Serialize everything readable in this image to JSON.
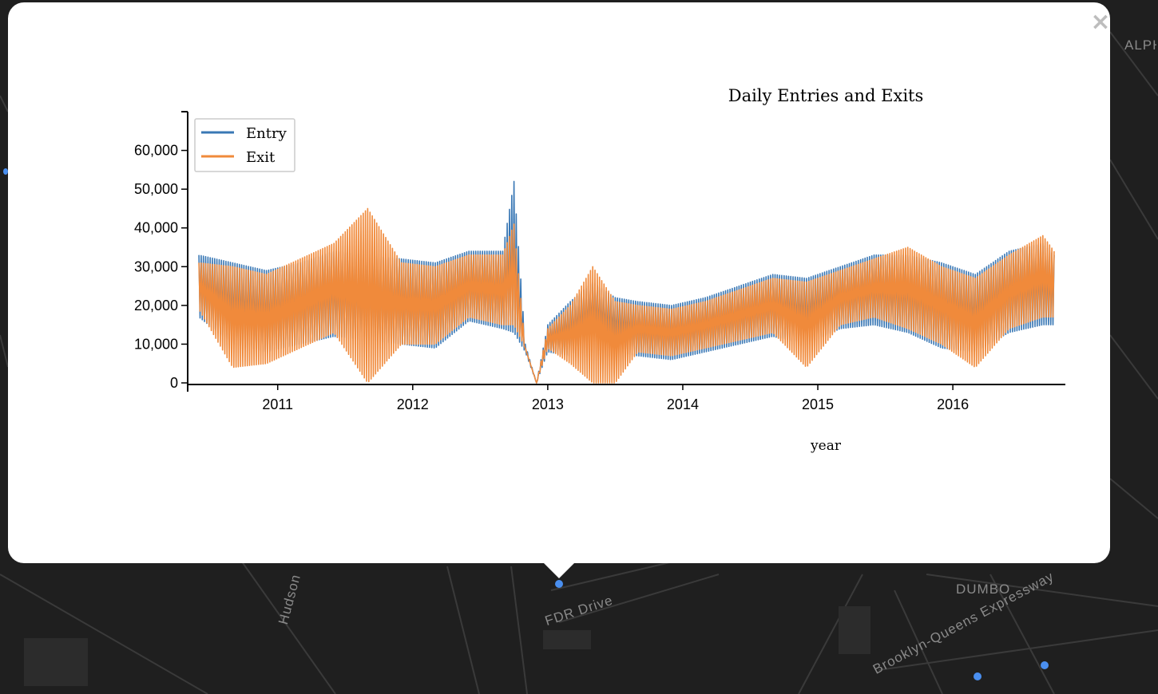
{
  "map": {
    "labels": [
      "DUMBO",
      "FDR Drive",
      "Brooklyn-Queens Expressway",
      "Hudson",
      "ALPH"
    ]
  },
  "popup": {
    "close_glyph": "×"
  },
  "colors": {
    "entry": "#3a78b5",
    "exit": "#f08a3b",
    "station_dot": "#4a8ff0"
  },
  "chart_data": {
    "type": "line",
    "title": "Daily Entries and Exits",
    "xlabel": "year",
    "ylabel": "",
    "grid": false,
    "legend_position": "top-left",
    "xlim": [
      "2010-05-01",
      "2016-11-01"
    ],
    "ylim": [
      0,
      70000
    ],
    "x_ticks": [
      "2011",
      "2012",
      "2013",
      "2014",
      "2015",
      "2016"
    ],
    "y_ticks": [
      "0",
      "10,000",
      "20,000",
      "30,000",
      "40,000",
      "50,000",
      "60,000"
    ],
    "series": [
      {
        "name": "Entry",
        "x": [
          "2010-06",
          "2010-09",
          "2010-12",
          "2011-03",
          "2011-06",
          "2011-09",
          "2011-12",
          "2012-03",
          "2012-06",
          "2012-09",
          "2012-10",
          "2012-11",
          "2012-12",
          "2013-01",
          "2013-03",
          "2013-05",
          "2013-07",
          "2013-09",
          "2013-12",
          "2014-03",
          "2014-06",
          "2014-09",
          "2014-12",
          "2015-03",
          "2015-06",
          "2015-09",
          "2015-12",
          "2016-03",
          "2016-06",
          "2016-09",
          "2016-10"
        ],
        "high": [
          33000,
          31000,
          29000,
          31000,
          34000,
          33000,
          32000,
          31000,
          34000,
          34000,
          52000,
          10000,
          0,
          15000,
          21000,
          26000,
          22000,
          21000,
          20000,
          22000,
          25000,
          28000,
          27000,
          30000,
          33000,
          33000,
          31000,
          28000,
          34000,
          36000,
          33000
        ],
        "low": [
          17000,
          10000,
          8000,
          10000,
          12000,
          11000,
          10000,
          9000,
          16000,
          14000,
          13000,
          8000,
          0,
          8000,
          7000,
          11000,
          8000,
          7000,
          6000,
          8000,
          10000,
          12000,
          10000,
          14000,
          15000,
          13000,
          9000,
          8000,
          13000,
          15000,
          15000
        ]
      },
      {
        "name": "Exit",
        "x": [
          "2010-06",
          "2010-09",
          "2010-12",
          "2011-03",
          "2011-06",
          "2011-09",
          "2011-12",
          "2012-03",
          "2012-06",
          "2012-09",
          "2012-10",
          "2012-11",
          "2012-12",
          "2013-01",
          "2013-03",
          "2013-05",
          "2013-07",
          "2013-09",
          "2013-12",
          "2014-03",
          "2014-06",
          "2014-09",
          "2014-12",
          "2015-03",
          "2015-06",
          "2015-09",
          "2015-12",
          "2016-03",
          "2016-06",
          "2016-09",
          "2016-10"
        ],
        "high": [
          31000,
          30000,
          28000,
          32000,
          36000,
          45000,
          31000,
          30000,
          33000,
          33000,
          41000,
          9000,
          0,
          14000,
          20000,
          30000,
          21000,
          20000,
          19000,
          21000,
          24000,
          27000,
          26000,
          29000,
          32000,
          35000,
          30000,
          27000,
          33000,
          38000,
          34000
        ],
        "low": [
          19000,
          4000,
          5000,
          9000,
          13000,
          0,
          10000,
          10000,
          17000,
          15000,
          15000,
          9000,
          0,
          9000,
          5000,
          0,
          0,
          8000,
          7000,
          9000,
          11000,
          13000,
          4000,
          15000,
          17000,
          14000,
          10000,
          4000,
          14000,
          17000,
          17000
        ]
      }
    ]
  }
}
